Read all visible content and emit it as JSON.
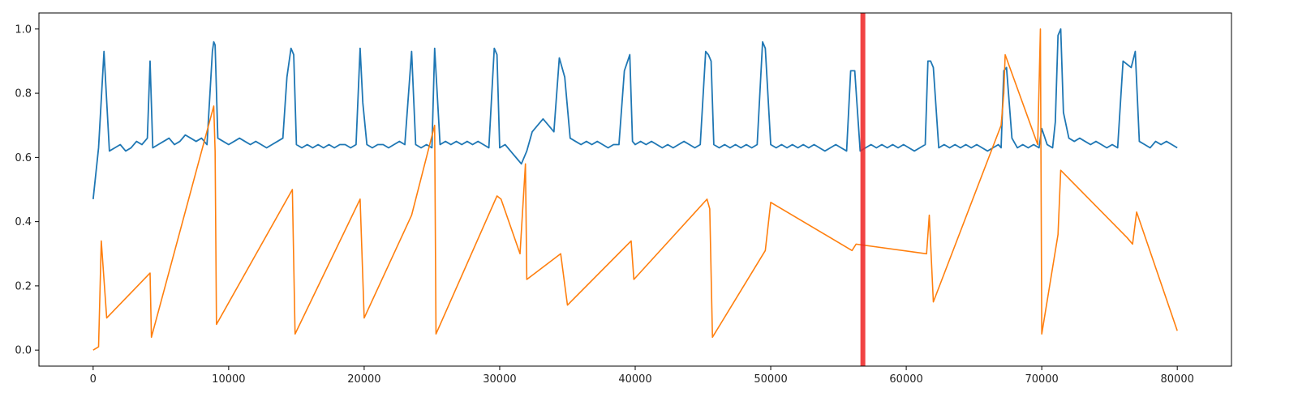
{
  "chart_data": {
    "type": "line",
    "title": "",
    "xlabel": "",
    "ylabel": "",
    "xlim": [
      -4000,
      84000
    ],
    "ylim": [
      -0.05,
      1.05
    ],
    "xticks": [
      0,
      10000,
      20000,
      30000,
      40000,
      50000,
      60000,
      70000,
      80000
    ],
    "xtick_labels": [
      "0",
      "10000",
      "20000",
      "30000",
      "40000",
      "50000",
      "60000",
      "70000",
      "80000"
    ],
    "yticks": [
      0.0,
      0.2,
      0.4,
      0.6,
      0.8,
      1.0
    ],
    "ytick_labels": [
      "0.0",
      "0.2",
      "0.4",
      "0.6",
      "0.8",
      "1.0"
    ],
    "grid": false,
    "legend": "none",
    "series": [
      {
        "color": "#1f77b4",
        "description": "oscillating signal between ~0.2 and ~0.63 with spikes",
        "x": [
          0,
          400,
          800,
          1200,
          1600,
          2000,
          2400,
          2800,
          3200,
          3600,
          4000,
          4200,
          4400,
          4800,
          5200,
          5600,
          6000,
          6400,
          6800,
          7200,
          7600,
          8000,
          8400,
          8800,
          8900,
          9000,
          9200,
          9600,
          10000,
          10400,
          10800,
          11200,
          11600,
          12000,
          12400,
          12800,
          13200,
          13600,
          14000,
          14300,
          14600,
          14800,
          15000,
          15400,
          15800,
          16200,
          16600,
          17000,
          17400,
          17800,
          18200,
          18600,
          19000,
          19400,
          19700,
          19900,
          20200,
          20600,
          21000,
          21400,
          21800,
          22200,
          22600,
          23000,
          23500,
          23800,
          24200,
          24600,
          25000,
          25200,
          25600,
          26000,
          26400,
          26800,
          27200,
          27600,
          28000,
          28400,
          28800,
          29200,
          29600,
          29800,
          30000,
          30400,
          30800,
          31200,
          31600,
          32000,
          32400,
          32800,
          33200,
          33600,
          34000,
          34400,
          34800,
          35200,
          35600,
          36000,
          36400,
          36800,
          37200,
          37600,
          38000,
          38400,
          38800,
          39200,
          39600,
          39800,
          40000,
          40400,
          40800,
          41200,
          41600,
          42000,
          42400,
          42800,
          43200,
          43600,
          44000,
          44400,
          44800,
          45200,
          45400,
          45600,
          45800,
          46200,
          46600,
          47000,
          47400,
          47800,
          48200,
          48600,
          49000,
          49400,
          49600,
          50000,
          50400,
          50800,
          51200,
          51600,
          52000,
          52400,
          52800,
          53200,
          53600,
          54000,
          54400,
          54800,
          55200,
          55600,
          55900,
          56200,
          56600,
          57000,
          57400,
          57800,
          58200,
          58600,
          59000,
          59400,
          59800,
          60200,
          60600,
          61000,
          61400,
          61600,
          61800,
          62000,
          62400,
          62800,
          63200,
          63600,
          64000,
          64400,
          64800,
          65200,
          65600,
          66000,
          66400,
          66800,
          67000,
          67200,
          67400,
          67800,
          68200,
          68600,
          69000,
          69400,
          69800,
          70000,
          70400,
          70800,
          71000,
          71200,
          71400,
          71600,
          72000,
          72400,
          72800,
          73200,
          73600,
          74000,
          74400,
          74800,
          75200,
          75600,
          76000,
          76300,
          76600,
          76900,
          77200,
          77600,
          78000,
          78400,
          78800,
          79200,
          79600,
          80000
        ],
        "y": [
          0.47,
          0.63,
          0.93,
          0.62,
          0.63,
          0.64,
          0.62,
          0.63,
          0.65,
          0.64,
          0.66,
          0.9,
          0.63,
          0.64,
          0.65,
          0.66,
          0.64,
          0.65,
          0.67,
          0.66,
          0.65,
          0.66,
          0.64,
          0.93,
          0.96,
          0.95,
          0.66,
          0.65,
          0.64,
          0.65,
          0.66,
          0.65,
          0.64,
          0.65,
          0.64,
          0.63,
          0.64,
          0.65,
          0.66,
          0.85,
          0.94,
          0.92,
          0.64,
          0.63,
          0.64,
          0.63,
          0.64,
          0.63,
          0.64,
          0.63,
          0.64,
          0.64,
          0.63,
          0.64,
          0.94,
          0.77,
          0.64,
          0.63,
          0.64,
          0.64,
          0.63,
          0.64,
          0.65,
          0.64,
          0.93,
          0.64,
          0.63,
          0.64,
          0.63,
          0.94,
          0.64,
          0.65,
          0.64,
          0.65,
          0.64,
          0.65,
          0.64,
          0.65,
          0.64,
          0.63,
          0.94,
          0.92,
          0.63,
          0.64,
          0.62,
          0.6,
          0.58,
          0.62,
          0.68,
          0.7,
          0.72,
          0.7,
          0.68,
          0.91,
          0.85,
          0.66,
          0.65,
          0.64,
          0.65,
          0.64,
          0.65,
          0.64,
          0.63,
          0.64,
          0.64,
          0.87,
          0.92,
          0.65,
          0.64,
          0.65,
          0.64,
          0.65,
          0.64,
          0.63,
          0.64,
          0.63,
          0.64,
          0.65,
          0.64,
          0.63,
          0.64,
          0.93,
          0.92,
          0.9,
          0.64,
          0.63,
          0.64,
          0.63,
          0.64,
          0.63,
          0.64,
          0.63,
          0.64,
          0.96,
          0.94,
          0.64,
          0.63,
          0.64,
          0.63,
          0.64,
          0.63,
          0.64,
          0.63,
          0.64,
          0.63,
          0.62,
          0.63,
          0.64,
          0.63,
          0.62,
          0.87,
          0.87,
          0.62,
          0.63,
          0.64,
          0.63,
          0.64,
          0.63,
          0.64,
          0.63,
          0.64,
          0.63,
          0.62,
          0.63,
          0.64,
          0.9,
          0.9,
          0.88,
          0.63,
          0.64,
          0.63,
          0.64,
          0.63,
          0.64,
          0.63,
          0.64,
          0.63,
          0.62,
          0.63,
          0.64,
          0.63,
          0.87,
          0.88,
          0.66,
          0.63,
          0.64,
          0.63,
          0.64,
          0.63,
          0.69,
          0.64,
          0.63,
          0.71,
          0.98,
          1.0,
          0.74,
          0.66,
          0.65,
          0.66,
          0.65,
          0.64,
          0.65,
          0.64,
          0.63,
          0.64,
          0.63,
          0.9,
          0.89,
          0.88,
          0.93,
          0.65,
          0.64,
          0.63,
          0.65,
          0.64,
          0.65,
          0.64,
          0.63
        ]
      },
      {
        "color": "#ff7f0e",
        "description": "near-zero signal with spikes",
        "x": [
          0,
          400,
          600,
          1000,
          4200,
          4300,
          8900,
          9000,
          9100,
          14700,
          14900,
          19700,
          20000,
          23500,
          25200,
          25300,
          29800,
          30100,
          31500,
          31900,
          32000,
          34500,
          35000,
          39700,
          39900,
          45300,
          45500,
          45700,
          49600,
          50000,
          56000,
          56300,
          61500,
          61700,
          62000,
          67000,
          67200,
          67300,
          69700,
          69900,
          70000,
          71200,
          71400,
          76300,
          76700,
          77000,
          80000
        ],
        "y": [
          0.0,
          0.01,
          0.34,
          0.1,
          0.24,
          0.04,
          0.76,
          0.62,
          0.08,
          0.5,
          0.05,
          0.47,
          0.1,
          0.42,
          0.7,
          0.05,
          0.48,
          0.47,
          0.3,
          0.58,
          0.22,
          0.3,
          0.14,
          0.34,
          0.22,
          0.47,
          0.44,
          0.04,
          0.31,
          0.46,
          0.31,
          0.33,
          0.3,
          0.42,
          0.15,
          0.7,
          0.8,
          0.92,
          0.64,
          1.0,
          0.05,
          0.36,
          0.56,
          0.35,
          0.33,
          0.43,
          0.06
        ]
      }
    ],
    "vertical_line": {
      "x": 56800,
      "color": "#ee2222"
    }
  }
}
